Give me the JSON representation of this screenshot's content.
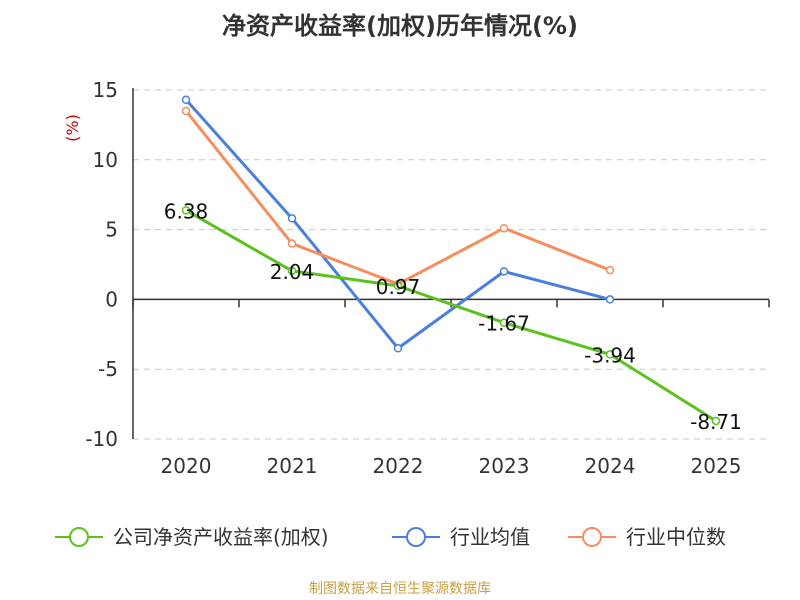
{
  "chart_data": {
    "type": "line",
    "title": "净资产收益率(加权)历年情况(%)",
    "ylabel": "(%)",
    "xlabel": "",
    "categories": [
      "2020",
      "2021",
      "2022",
      "2023",
      "2024",
      "2025"
    ],
    "ylim": [
      -10,
      15
    ],
    "yticks": [
      15,
      10,
      5,
      0,
      -5,
      -10
    ],
    "grid": true,
    "legend_position": "bottom",
    "series": [
      {
        "name": "公司净资产收益率(加权)",
        "color": "#5bc21d",
        "values": [
          6.38,
          2.04,
          0.97,
          -1.67,
          -3.94,
          -8.71
        ],
        "labels": [
          "6.38",
          "2.04",
          "0.97",
          "-1.67",
          "-3.94",
          "-8.71"
        ]
      },
      {
        "name": "行业均值",
        "color": "#4a7fdb",
        "values": [
          14.3,
          5.8,
          -3.5,
          2.0,
          0.0,
          null
        ]
      },
      {
        "name": "行业中位数",
        "color": "#f58e5c",
        "values": [
          13.5,
          4.0,
          1.1,
          5.1,
          2.1,
          null
        ]
      }
    ],
    "ylabel_color": "#cc0000",
    "source": "制图数据来自恒生聚源数据库"
  }
}
